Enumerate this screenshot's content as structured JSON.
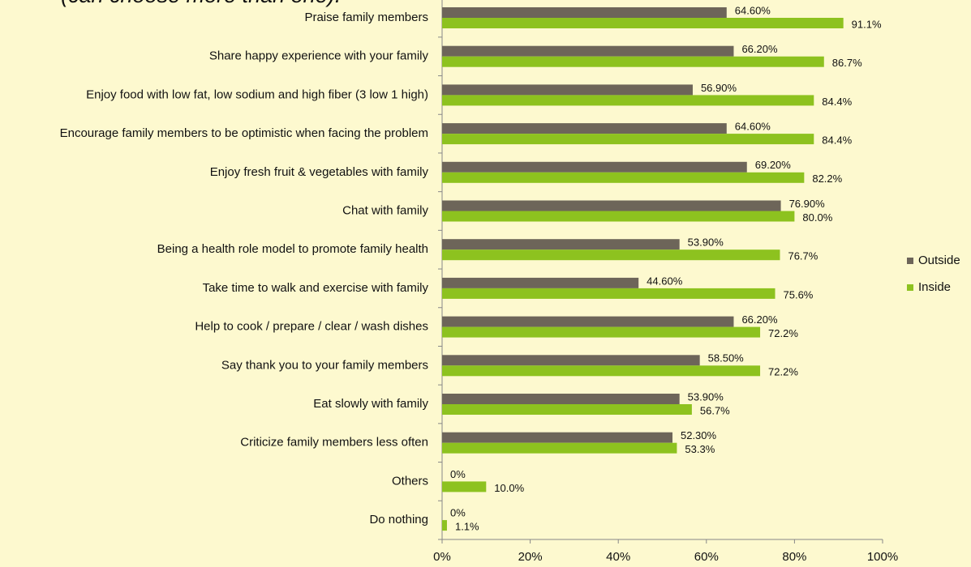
{
  "chart_data": {
    "type": "bar",
    "orientation": "horizontal",
    "subtitle": "(can choose more than one).",
    "categories": [
      "Praise family members",
      "Share happy experience with your family",
      "Enjoy food with low fat, low sodium and high fiber (3 low 1 high)",
      "Encourage family members to be optimistic when facing the problem",
      "Enjoy fresh fruit & vegetables with family",
      "Chat with family",
      "Being a health role model to promote family health",
      "Take time to walk and exercise with family",
      "Help to cook / prepare / clear / wash dishes",
      "Say thank you to your family members",
      "Eat slowly with family",
      "Criticize family members less often",
      "Others",
      "Do nothing"
    ],
    "series": [
      {
        "name": "Outside",
        "color": "#6d6559",
        "values": [
          64.6,
          66.2,
          56.9,
          64.6,
          69.2,
          76.9,
          53.9,
          44.6,
          66.2,
          58.5,
          53.9,
          52.3,
          0,
          0
        ],
        "value_labels": [
          "64.60%",
          "66.20%",
          "56.90%",
          "64.60%",
          "69.20%",
          "76.90%",
          "53.90%",
          "44.60%",
          "66.20%",
          "58.50%",
          "53.90%",
          "52.30%",
          "0%",
          "0%"
        ]
      },
      {
        "name": "Inside",
        "color": "#8dc21f",
        "values": [
          91.1,
          86.7,
          84.4,
          84.4,
          82.2,
          80.0,
          76.7,
          75.6,
          72.2,
          72.2,
          56.7,
          53.3,
          10.0,
          1.1
        ],
        "value_labels": [
          "91.1%",
          "86.7%",
          "84.4%",
          "84.4%",
          "82.2%",
          "80.0%",
          "76.7%",
          "75.6%",
          "72.2%",
          "72.2%",
          "56.7%",
          "53.3%",
          "10.0%",
          "1.1%"
        ]
      }
    ],
    "xlim": [
      0,
      100
    ],
    "xticks": [
      {
        "value": 0,
        "label": "0%"
      },
      {
        "value": 20,
        "label": "20%"
      },
      {
        "value": 40,
        "label": "40%"
      },
      {
        "value": 60,
        "label": "60%"
      },
      {
        "value": 80,
        "label": "80%"
      },
      {
        "value": 100,
        "label": "100%"
      }
    ],
    "legend": "right",
    "grid": false
  }
}
